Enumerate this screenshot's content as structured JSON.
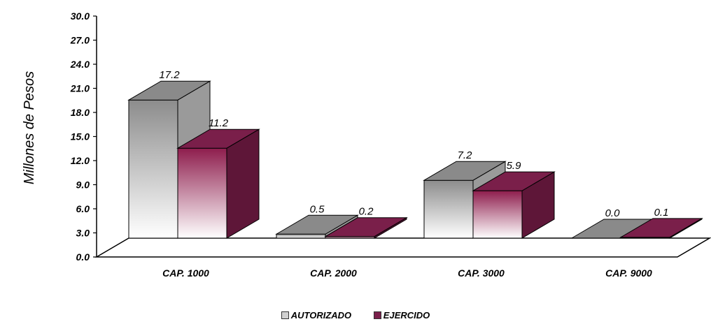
{
  "chart_data": {
    "type": "bar",
    "title": "",
    "xlabel": "",
    "ylabel": "Millones de Pesos",
    "ylim": [
      0,
      30
    ],
    "yticks": [
      "0.0",
      "3.0",
      "6.0",
      "9.0",
      "12.0",
      "15.0",
      "18.0",
      "21.0",
      "24.0",
      "27.0",
      "30.0"
    ],
    "categories": [
      "CAP. 1000",
      "CAP. 2000",
      "CAP. 3000",
      "CAP. 9000"
    ],
    "series": [
      {
        "name": "AUTORIZADO",
        "values": [
          17.2,
          0.5,
          7.2,
          0.0
        ],
        "labels": [
          "17.2",
          "0.5",
          "7.2",
          "0.0"
        ],
        "color": "#9a9a9a"
      },
      {
        "name": "EJERCIDO",
        "values": [
          11.2,
          0.2,
          5.9,
          0.1
        ],
        "labels": [
          "11.2",
          "0.2",
          "5.9",
          "0.1"
        ],
        "color": "#7a1f4a"
      }
    ],
    "legend_position": "bottom",
    "grid": false,
    "style": "3d-column"
  }
}
